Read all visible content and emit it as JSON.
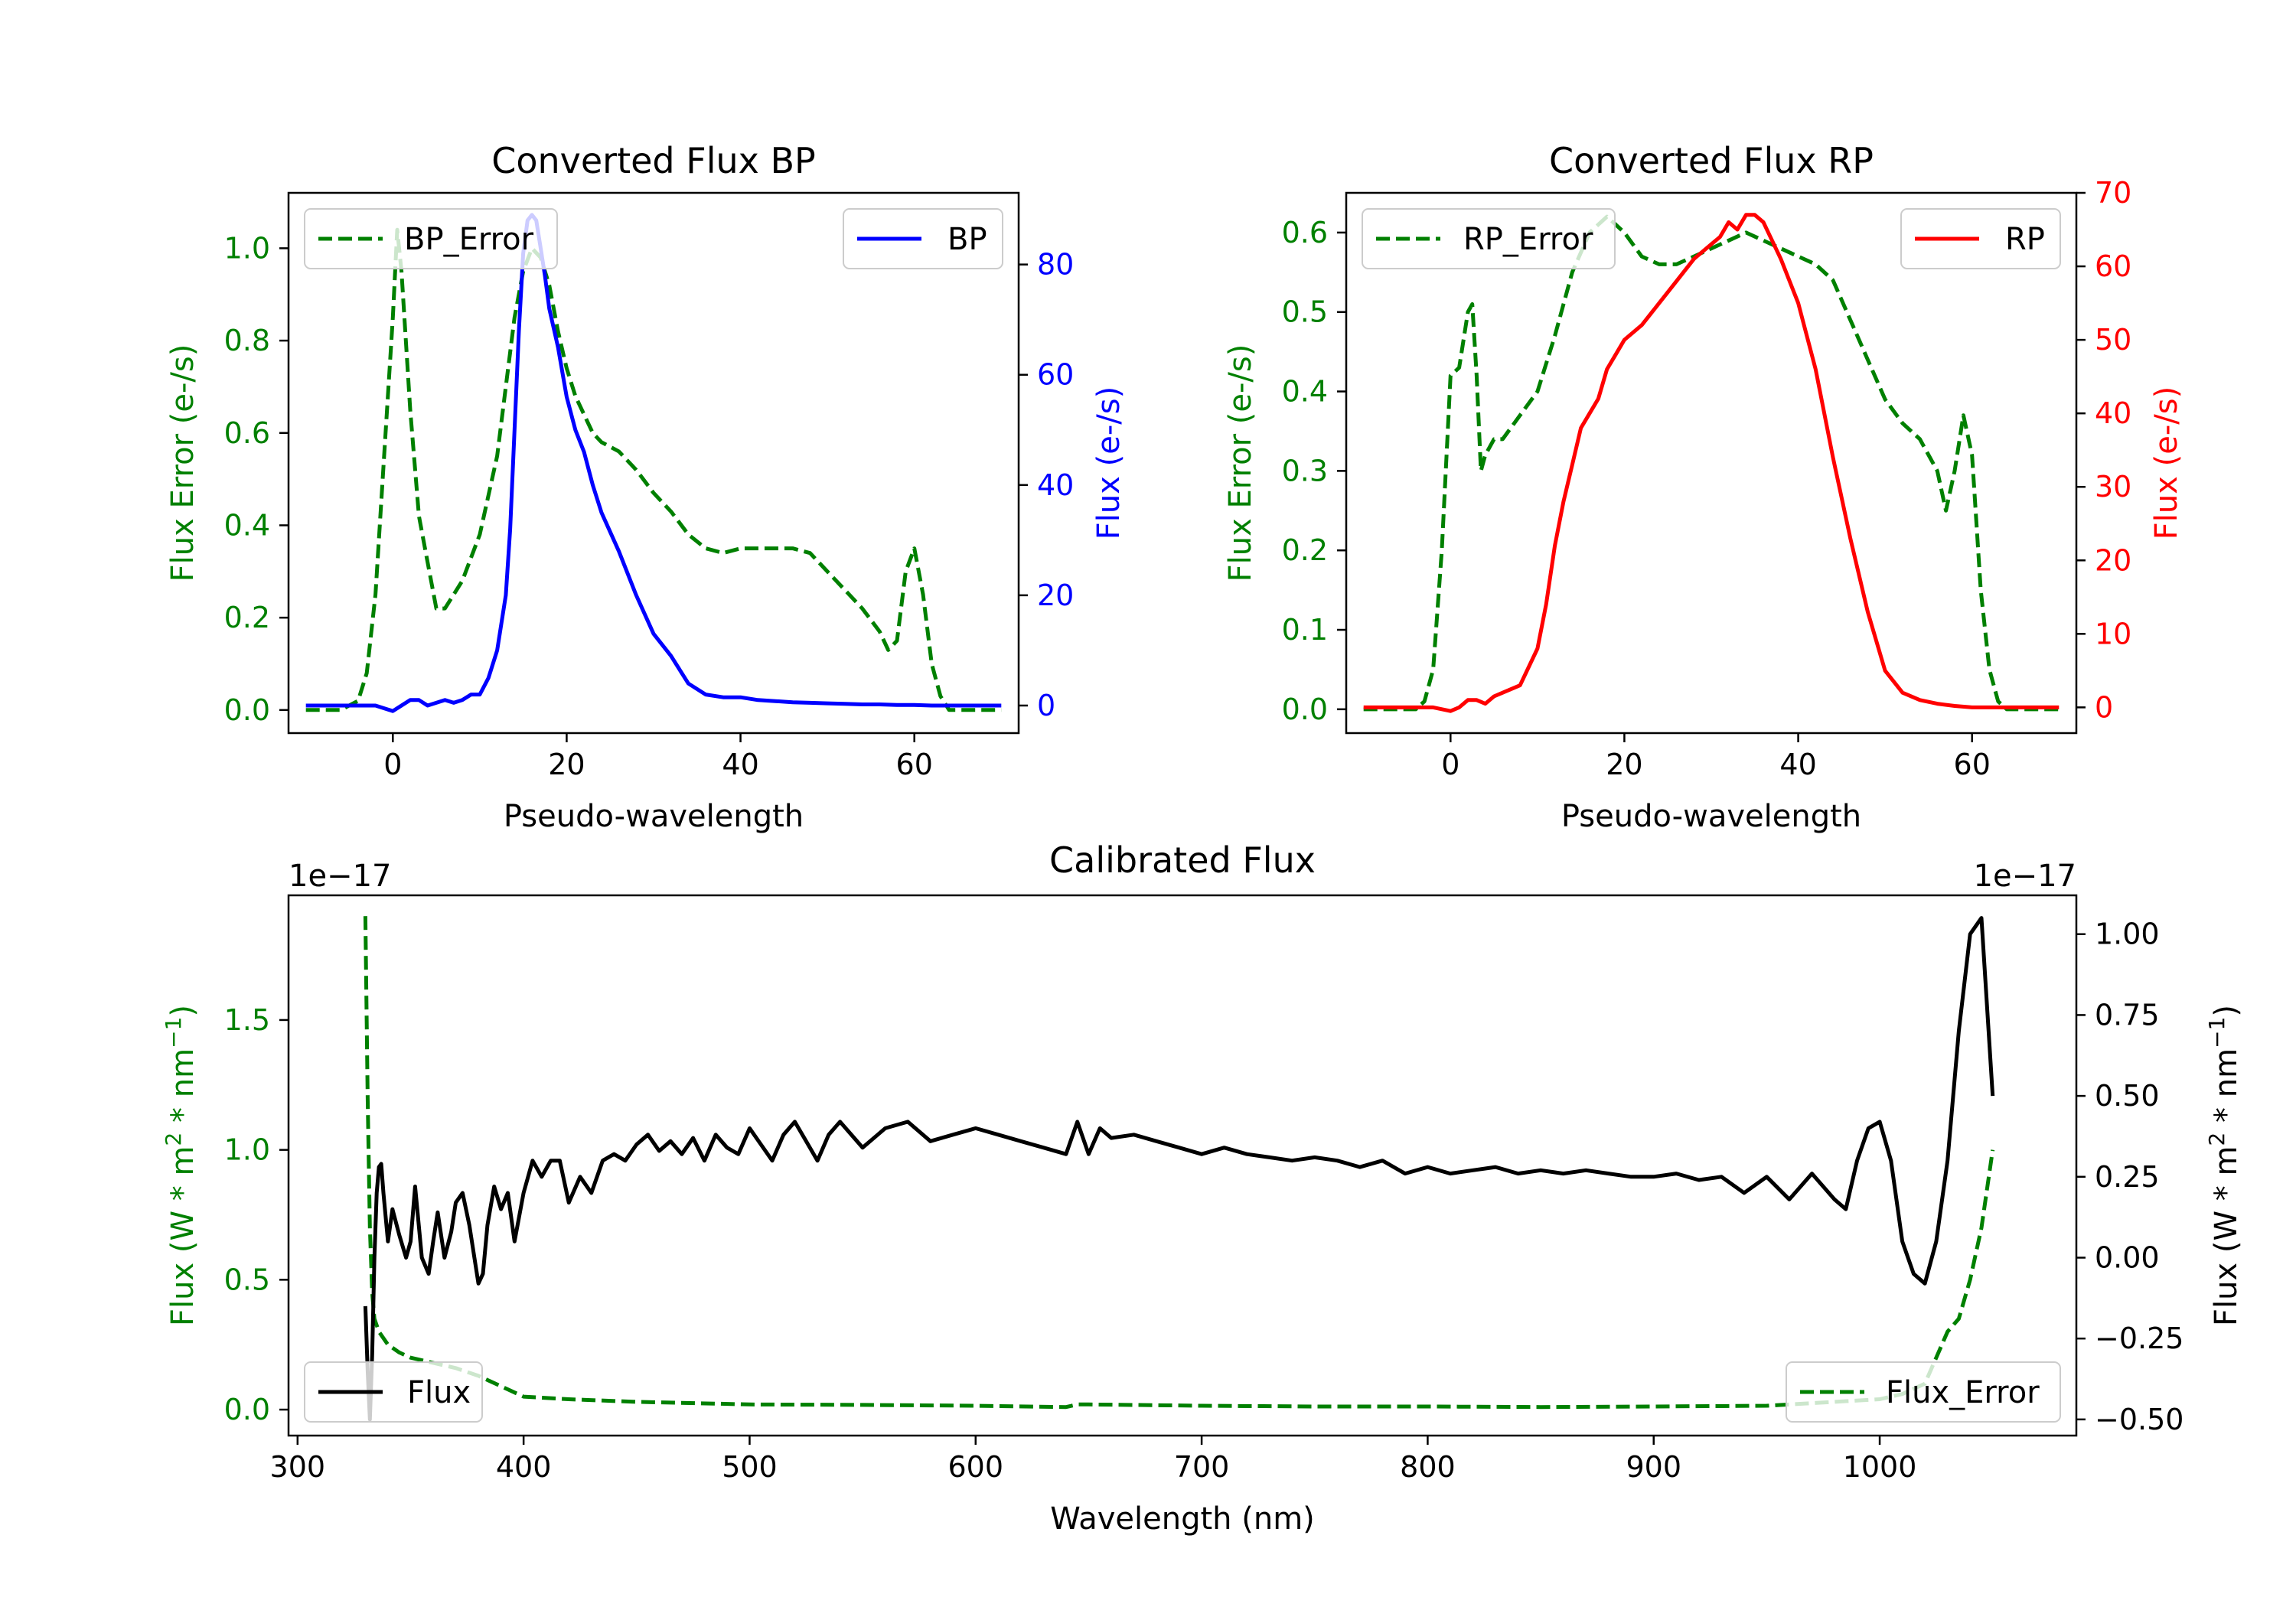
{
  "figure": {
    "background": "#ffffff"
  },
  "chart_data": [
    {
      "type": "line",
      "title": "Converted Flux BP",
      "xlabel": "Pseudo-wavelength",
      "ylabel_left": "Flux Error (e-/s)",
      "ylabel_right": "Flux (e-/s)",
      "xlim": [
        -12,
        72
      ],
      "ylim_left": [
        -0.05,
        1.12
      ],
      "ylim_right": [
        -5,
        93
      ],
      "xticks": [
        0,
        20,
        40,
        60
      ],
      "xtick_labels": [
        "0",
        "20",
        "40",
        "60"
      ],
      "yticks_left": [
        0.0,
        0.2,
        0.4,
        0.6,
        0.8,
        1.0
      ],
      "ytick_labels_left": [
        "0.0",
        "0.2",
        "0.4",
        "0.6",
        "0.8",
        "1.0"
      ],
      "yticks_right": [
        0,
        20,
        40,
        60,
        80
      ],
      "ytick_labels_right": [
        "0",
        "20",
        "40",
        "60",
        "80"
      ],
      "left_color": "#008000",
      "right_color": "#0000ff",
      "legend_left": {
        "label": "BP_Error",
        "placement": "upper left"
      },
      "legend_right": {
        "label": "BP",
        "placement": "upper right"
      },
      "series": [
        {
          "name": "BP_Error",
          "axis": "left",
          "color": "#008000",
          "style": "dashed",
          "x": [
            -10,
            -6,
            -4,
            -3,
            -2,
            -1,
            0,
            0.5,
            1,
            2,
            3,
            4,
            5,
            6,
            8,
            10,
            12,
            13,
            14,
            15,
            16,
            17,
            18,
            19,
            20,
            21,
            22,
            23,
            24,
            26,
            28,
            30,
            32,
            34,
            36,
            38,
            40,
            42,
            44,
            46,
            48,
            50,
            52,
            54,
            56,
            57,
            58,
            59,
            60,
            61,
            62,
            63,
            64,
            66,
            68,
            70
          ],
          "y": [
            0.0,
            0.0,
            0.02,
            0.08,
            0.25,
            0.55,
            0.85,
            1.04,
            0.95,
            0.65,
            0.42,
            0.32,
            0.22,
            0.22,
            0.28,
            0.38,
            0.55,
            0.7,
            0.85,
            0.95,
            1.0,
            0.98,
            0.92,
            0.82,
            0.74,
            0.68,
            0.64,
            0.6,
            0.58,
            0.56,
            0.52,
            0.47,
            0.43,
            0.38,
            0.35,
            0.34,
            0.35,
            0.35,
            0.35,
            0.35,
            0.34,
            0.3,
            0.26,
            0.22,
            0.17,
            0.13,
            0.15,
            0.3,
            0.35,
            0.25,
            0.1,
            0.03,
            0.0,
            0.0,
            0.0,
            0.0
          ]
        },
        {
          "name": "BP",
          "axis": "right",
          "color": "#0000ff",
          "style": "solid",
          "x": [
            -10,
            -6,
            -4,
            -2,
            0,
            1,
            2,
            3,
            4,
            5,
            6,
            7,
            8,
            9,
            10,
            11,
            12,
            13,
            13.5,
            14,
            14.5,
            15,
            15.5,
            16,
            16.5,
            17,
            17.5,
            18,
            19,
            20,
            21,
            22,
            23,
            24,
            26,
            28,
            30,
            32,
            34,
            36,
            38,
            40,
            42,
            44,
            46,
            48,
            50,
            52,
            54,
            56,
            58,
            60,
            62,
            64,
            66,
            68,
            70
          ],
          "y": [
            0,
            0,
            0,
            0,
            -1,
            0,
            1,
            1,
            0,
            0.5,
            1,
            0.5,
            1,
            2,
            2,
            5,
            10,
            20,
            32,
            50,
            68,
            82,
            88,
            89,
            88,
            83,
            78,
            72,
            65,
            56,
            50,
            46,
            40,
            35,
            28,
            20,
            13,
            9,
            4,
            2,
            1.5,
            1.5,
            1,
            0.8,
            0.6,
            0.5,
            0.4,
            0.3,
            0.2,
            0.2,
            0.1,
            0.1,
            0,
            0,
            0,
            0,
            0
          ]
        }
      ]
    },
    {
      "type": "line",
      "title": "Converted Flux RP",
      "xlabel": "Pseudo-wavelength",
      "ylabel_left": "Flux Error (e-/s)",
      "ylabel_right": "Flux (e-/s)",
      "xlim": [
        -12,
        72
      ],
      "ylim_left": [
        -0.03,
        0.65
      ],
      "ylim_right": [
        -3.5,
        70
      ],
      "xticks": [
        0,
        20,
        40,
        60
      ],
      "xtick_labels": [
        "0",
        "20",
        "40",
        "60"
      ],
      "yticks_left": [
        0.0,
        0.1,
        0.2,
        0.3,
        0.4,
        0.5,
        0.6
      ],
      "ytick_labels_left": [
        "0.0",
        "0.1",
        "0.2",
        "0.3",
        "0.4",
        "0.5",
        "0.6"
      ],
      "yticks_right": [
        0,
        10,
        20,
        30,
        40,
        50,
        60,
        70
      ],
      "ytick_labels_right": [
        "0",
        "10",
        "20",
        "30",
        "40",
        "50",
        "60",
        "70"
      ],
      "left_color": "#008000",
      "right_color": "#ff0000",
      "legend_left": {
        "label": "RP_Error",
        "placement": "upper left"
      },
      "legend_right": {
        "label": "RP",
        "placement": "upper right"
      },
      "series": [
        {
          "name": "RP_Error",
          "axis": "left",
          "color": "#008000",
          "style": "dashed",
          "x": [
            -10,
            -6,
            -4,
            -3,
            -2,
            -1,
            0,
            1,
            2,
            2.5,
            3,
            3.5,
            4,
            5,
            6,
            8,
            10,
            12,
            14,
            16,
            18,
            19,
            20,
            22,
            24,
            26,
            28,
            30,
            32,
            34,
            36,
            38,
            40,
            42,
            44,
            46,
            48,
            50,
            52,
            54,
            55,
            56,
            57,
            58,
            59,
            60,
            61,
            62,
            63,
            64,
            66,
            68,
            70
          ],
          "y": [
            0.0,
            0.0,
            0.0,
            0.01,
            0.05,
            0.2,
            0.42,
            0.43,
            0.5,
            0.51,
            0.42,
            0.3,
            0.32,
            0.34,
            0.34,
            0.37,
            0.4,
            0.47,
            0.55,
            0.6,
            0.62,
            0.61,
            0.6,
            0.57,
            0.56,
            0.56,
            0.57,
            0.58,
            0.59,
            0.6,
            0.59,
            0.58,
            0.57,
            0.56,
            0.54,
            0.49,
            0.44,
            0.39,
            0.36,
            0.34,
            0.32,
            0.3,
            0.25,
            0.3,
            0.37,
            0.32,
            0.15,
            0.05,
            0.01,
            0.0,
            0.0,
            0.0,
            0.0
          ]
        },
        {
          "name": "RP",
          "axis": "right",
          "color": "#ff0000",
          "style": "solid",
          "x": [
            -10,
            -6,
            -4,
            -2,
            0,
            1,
            2,
            3,
            4,
            5,
            6,
            8,
            10,
            11,
            12,
            13,
            14,
            15,
            16,
            17,
            18,
            19,
            20,
            22,
            24,
            26,
            28,
            30,
            31,
            32,
            33,
            34,
            35,
            36,
            38,
            40,
            42,
            44,
            46,
            48,
            50,
            52,
            54,
            56,
            58,
            60,
            62,
            64,
            66,
            68,
            70
          ],
          "y": [
            0,
            0,
            0,
            0,
            -0.5,
            0,
            1,
            1,
            0.5,
            1.5,
            2,
            3,
            8,
            14,
            22,
            28,
            33,
            38,
            40,
            42,
            46,
            48,
            50,
            52,
            55,
            58,
            61,
            63,
            64,
            66,
            65,
            67,
            67,
            66,
            61,
            55,
            46,
            34,
            23,
            13,
            5,
            2,
            1,
            0.5,
            0.2,
            0,
            0,
            0,
            0,
            0,
            0
          ]
        }
      ]
    },
    {
      "type": "line",
      "title": "Calibrated Flux",
      "xlabel": "Wavelength (nm)",
      "ylabel_left": "Flux (W * m² * nm⁻¹)",
      "ylabel_right": "Flux (W * m² * nm⁻¹)",
      "ylabel_left_parts": [
        "Flux (W * m",
        "2",
        " * nm",
        "−1",
        ")"
      ],
      "ylabel_right_parts": [
        "Flux (W * m",
        "2",
        " * nm",
        "−1",
        ")"
      ],
      "offset_text_left": "1e−17",
      "offset_text_right": "1e−17",
      "xlim": [
        296,
        1087
      ],
      "ylim_left": [
        -0.1,
        1.98
      ],
      "ylim_right": [
        -0.55,
        1.12
      ],
      "xticks": [
        300,
        400,
        500,
        600,
        700,
        800,
        900,
        1000
      ],
      "xtick_labels": [
        "300",
        "400",
        "500",
        "600",
        "700",
        "800",
        "900",
        "1000"
      ],
      "yticks_left": [
        0.0,
        0.5,
        1.0,
        1.5
      ],
      "ytick_labels_left": [
        "0.0",
        "0.5",
        "1.0",
        "1.5"
      ],
      "yticks_right": [
        -0.5,
        -0.25,
        0.0,
        0.25,
        0.5,
        0.75,
        1.0
      ],
      "ytick_labels_right": [
        "−0.50",
        "−0.25",
        "0.00",
        "0.25",
        "0.50",
        "0.75",
        "1.00"
      ],
      "left_color": "#008000",
      "right_color": "#000000",
      "legend_left": {
        "label": "Flux",
        "placement": "lower left"
      },
      "legend_right": {
        "label": "Flux_Error",
        "placement": "lower right"
      },
      "series": [
        {
          "name": "Flux_Error",
          "axis": "left",
          "color": "#008000",
          "style": "dashed",
          "x": [
            330,
            331,
            332,
            333,
            334,
            336,
            340,
            345,
            350,
            360,
            370,
            380,
            390,
            400,
            420,
            450,
            500,
            550,
            600,
            640,
            645,
            650,
            700,
            750,
            800,
            850,
            900,
            950,
            980,
            1000,
            1010,
            1020,
            1025,
            1030,
            1035,
            1040,
            1045,
            1050
          ],
          "y": [
            1.9,
            1.2,
            0.7,
            0.45,
            0.35,
            0.3,
            0.25,
            0.22,
            0.2,
            0.18,
            0.16,
            0.13,
            0.09,
            0.05,
            0.04,
            0.03,
            0.02,
            0.018,
            0.015,
            0.01,
            0.02,
            0.02,
            0.015,
            0.012,
            0.012,
            0.01,
            0.012,
            0.015,
            0.03,
            0.04,
            0.06,
            0.1,
            0.2,
            0.3,
            0.35,
            0.5,
            0.7,
            1.0
          ]
        },
        {
          "name": "Flux",
          "axis": "right",
          "color": "#000000",
          "style": "solid",
          "x": [
            330,
            331,
            332,
            333,
            334,
            335,
            336,
            337,
            338,
            340,
            342,
            345,
            348,
            350,
            352,
            355,
            358,
            360,
            362,
            365,
            368,
            370,
            373,
            376,
            380,
            382,
            384,
            387,
            390,
            393,
            396,
            400,
            404,
            408,
            412,
            416,
            420,
            425,
            430,
            435,
            440,
            445,
            450,
            455,
            460,
            465,
            470,
            475,
            480,
            485,
            490,
            495,
            500,
            505,
            510,
            515,
            520,
            525,
            530,
            535,
            540,
            545,
            550,
            560,
            570,
            580,
            590,
            600,
            610,
            620,
            630,
            640,
            645,
            650,
            655,
            660,
            670,
            680,
            690,
            700,
            710,
            720,
            730,
            740,
            750,
            760,
            770,
            780,
            790,
            800,
            810,
            820,
            830,
            840,
            850,
            860,
            870,
            880,
            890,
            900,
            910,
            920,
            930,
            940,
            950,
            960,
            970,
            980,
            985,
            990,
            995,
            1000,
            1005,
            1010,
            1015,
            1020,
            1025,
            1030,
            1035,
            1040,
            1045,
            1050
          ],
          "y": [
            -0.15,
            -0.35,
            -0.5,
            -0.3,
            0.0,
            0.2,
            0.28,
            0.29,
            0.2,
            0.05,
            0.15,
            0.07,
            0.0,
            0.05,
            0.22,
            0.0,
            -0.05,
            0.05,
            0.14,
            0.0,
            0.08,
            0.17,
            0.2,
            0.1,
            -0.08,
            -0.05,
            0.1,
            0.22,
            0.15,
            0.2,
            0.05,
            0.2,
            0.3,
            0.25,
            0.3,
            0.3,
            0.17,
            0.25,
            0.2,
            0.3,
            0.32,
            0.3,
            0.35,
            0.38,
            0.33,
            0.36,
            0.32,
            0.37,
            0.3,
            0.38,
            0.34,
            0.32,
            0.4,
            0.35,
            0.3,
            0.38,
            0.42,
            0.36,
            0.3,
            0.38,
            0.42,
            0.38,
            0.34,
            0.4,
            0.42,
            0.36,
            0.38,
            0.4,
            0.38,
            0.36,
            0.34,
            0.32,
            0.42,
            0.32,
            0.4,
            0.37,
            0.38,
            0.36,
            0.34,
            0.32,
            0.34,
            0.32,
            0.31,
            0.3,
            0.31,
            0.3,
            0.28,
            0.3,
            0.26,
            0.28,
            0.26,
            0.27,
            0.28,
            0.26,
            0.27,
            0.26,
            0.27,
            0.26,
            0.25,
            0.25,
            0.26,
            0.24,
            0.25,
            0.2,
            0.25,
            0.18,
            0.26,
            0.18,
            0.15,
            0.3,
            0.4,
            0.42,
            0.3,
            0.05,
            -0.05,
            -0.08,
            0.05,
            0.3,
            0.7,
            1.0,
            1.05,
            0.5
          ]
        }
      ]
    }
  ]
}
